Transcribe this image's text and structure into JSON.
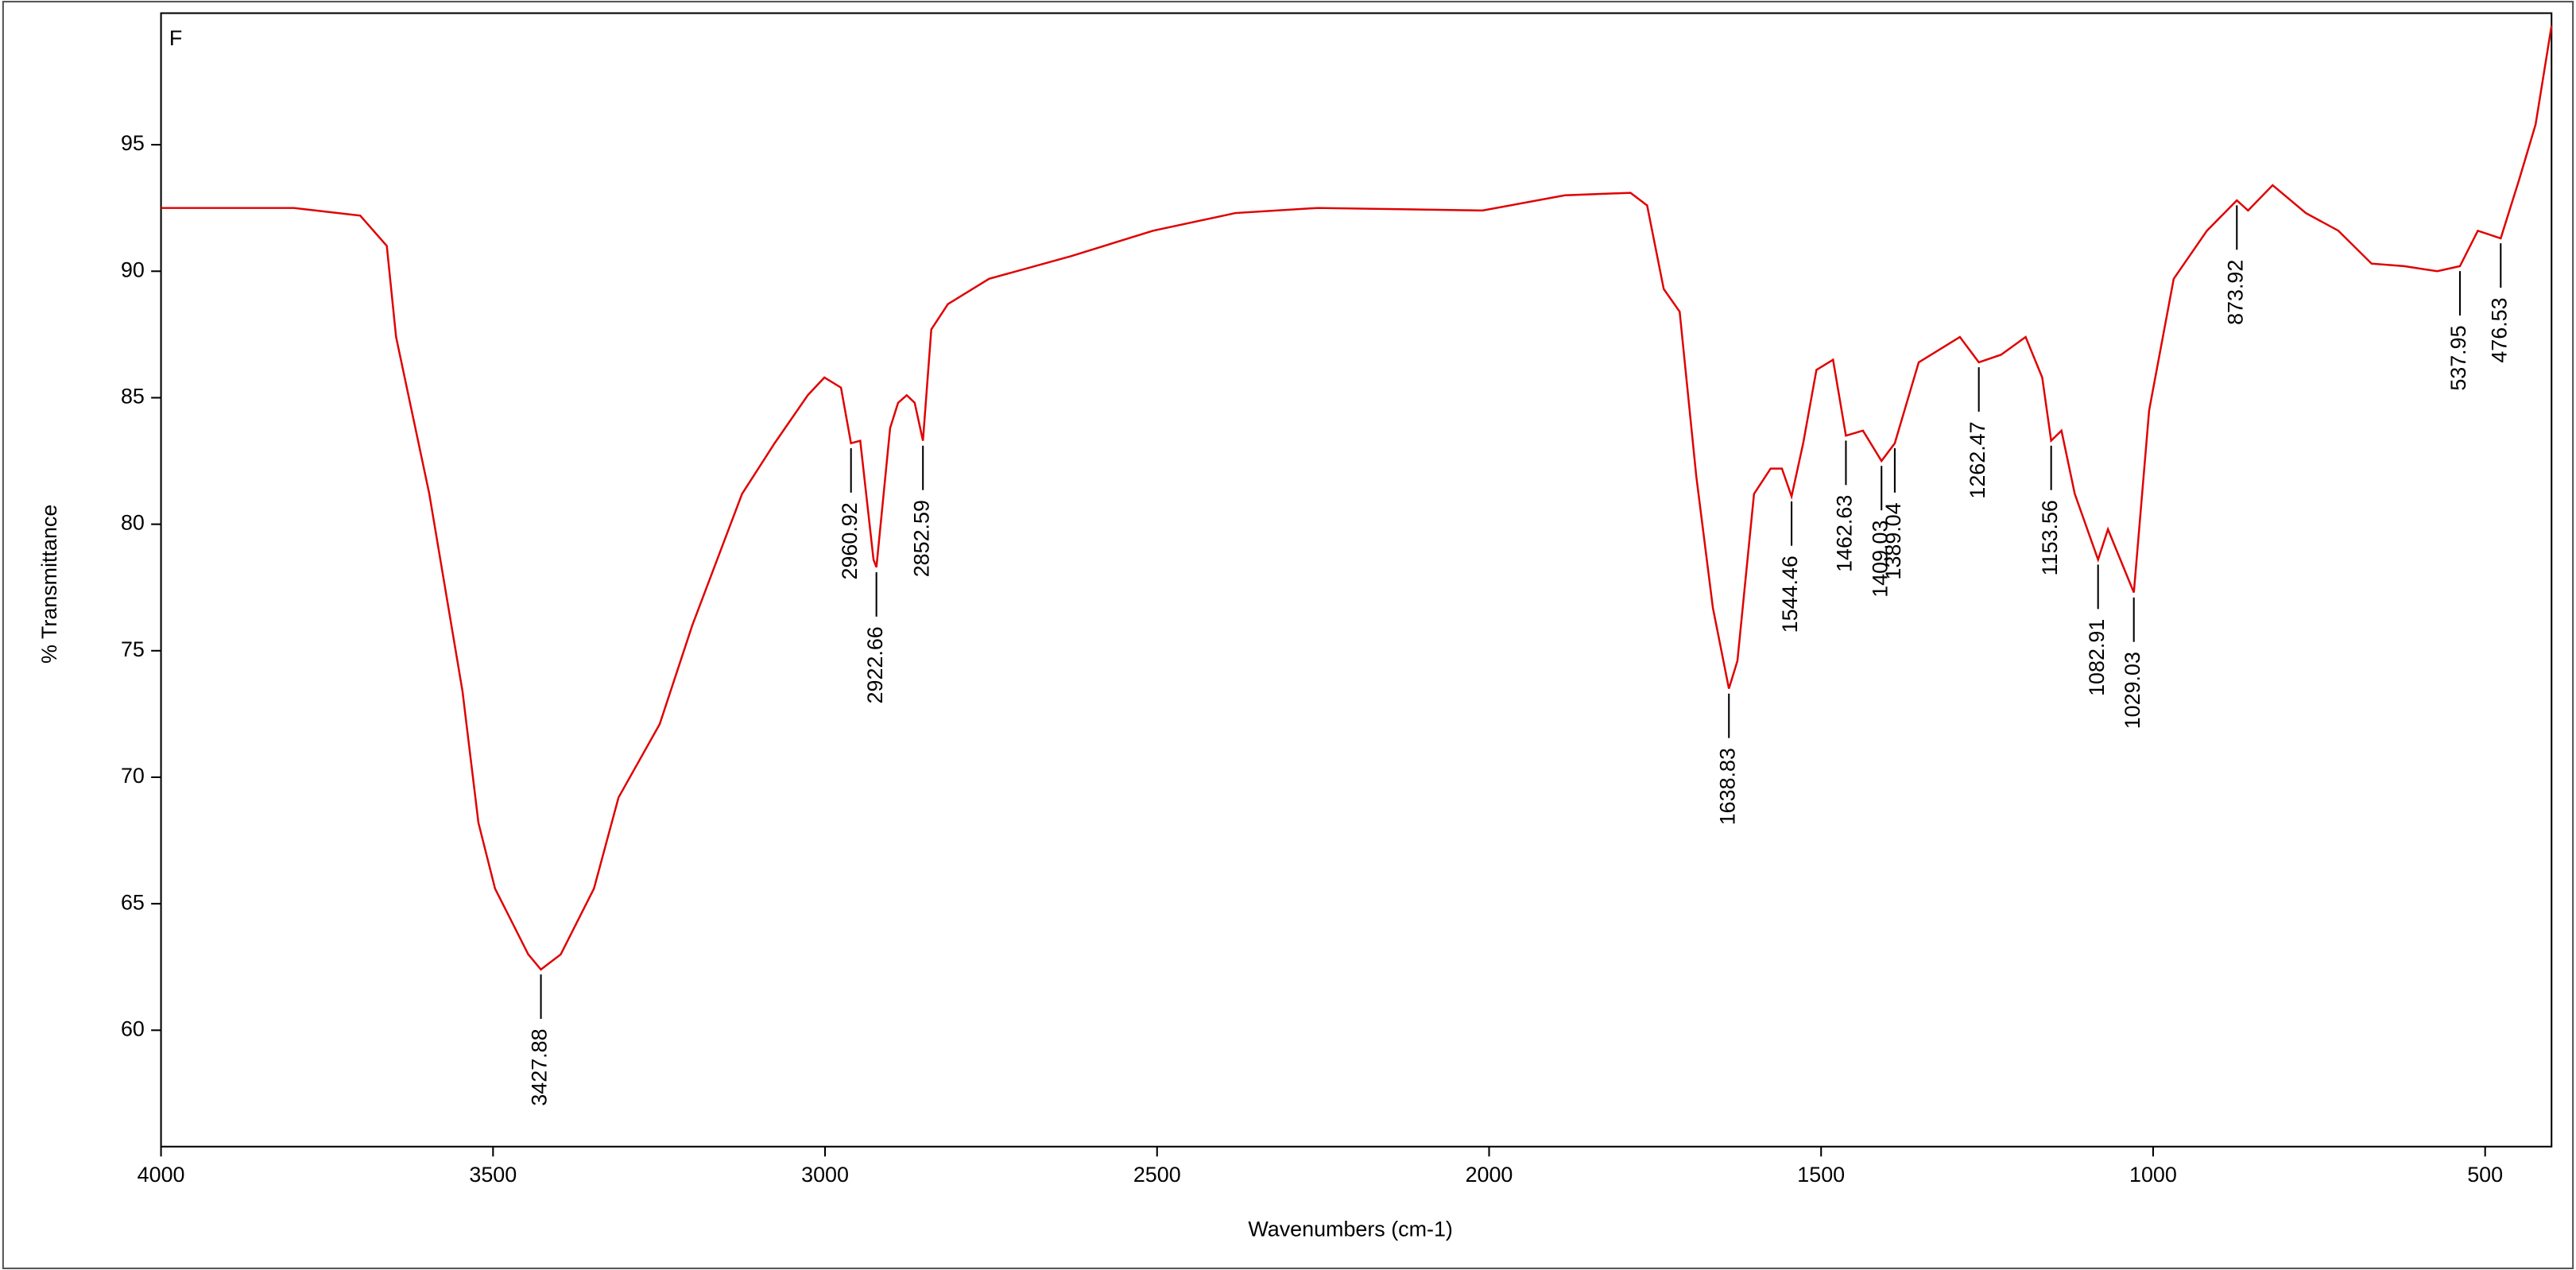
{
  "chart_data": {
    "type": "line",
    "annotation": "F",
    "x_label": "Wavenumbers (cm-1)",
    "y_label": "% Transmittance",
    "xlim": [
      4000,
      400
    ],
    "ylim": [
      55.4,
      100.2
    ],
    "xticks": [
      4000,
      3500,
      3000,
      2500,
      2000,
      1500,
      1000,
      500
    ],
    "yticks": [
      60,
      65,
      70,
      75,
      80,
      85,
      90,
      95
    ],
    "color": "#e00000",
    "grid": false,
    "x": [
      4000,
      3800,
      3700,
      3660,
      3646,
      3596,
      3546,
      3522,
      3497,
      3447,
      3427.88,
      3398,
      3348,
      3311,
      3249,
      3200,
      3125,
      3076,
      3026,
      3001,
      2976,
      2960.92,
      2947,
      2927,
      2922.66,
      2902,
      2890,
      2877,
      2865,
      2852.59,
      2840,
      2815,
      2753,
      2629,
      2506,
      2382,
      2258,
      2010,
      1886,
      1787,
      1762,
      1737,
      1713,
      1688,
      1663,
      1638.83,
      1626,
      1601,
      1576,
      1559,
      1544.46,
      1527,
      1507,
      1482,
      1462.63,
      1437,
      1409.03,
      1389.04,
      1353,
      1291,
      1262.47,
      1229,
      1192,
      1167,
      1153.56,
      1138,
      1118,
      1082.91,
      1068,
      1029.03,
      1006,
      969,
      919,
      873.92,
      857,
      820,
      770,
      721,
      671,
      622,
      572,
      537.95,
      511,
      476.53,
      449,
      424,
      400
    ],
    "values": [
      92.5,
      92.5,
      92.2,
      91.0,
      87.4,
      81.2,
      73.4,
      68.2,
      65.6,
      63.0,
      62.4,
      63.0,
      65.6,
      69.2,
      72.1,
      76.0,
      81.2,
      83.2,
      85.1,
      85.8,
      85.4,
      83.2,
      83.3,
      78.6,
      78.3,
      83.8,
      84.8,
      85.1,
      84.8,
      83.3,
      87.7,
      88.7,
      89.7,
      90.6,
      91.6,
      92.3,
      92.5,
      92.4,
      93.0,
      93.1,
      92.6,
      89.3,
      88.4,
      81.9,
      76.7,
      73.5,
      74.6,
      81.2,
      82.2,
      82.2,
      81.1,
      83.2,
      86.1,
      86.5,
      83.5,
      83.7,
      82.5,
      83.2,
      86.4,
      87.4,
      86.4,
      86.7,
      87.4,
      85.8,
      83.3,
      83.7,
      81.2,
      78.6,
      79.8,
      77.3,
      84.5,
      89.7,
      91.6,
      92.8,
      92.4,
      93.4,
      92.3,
      91.6,
      90.3,
      90.2,
      90.0,
      90.2,
      91.6,
      91.3,
      93.6,
      95.8,
      99.7
    ],
    "peaks": [
      {
        "x": 3427.88,
        "y": 62.4
      },
      {
        "x": 2960.92,
        "y": 83.2
      },
      {
        "x": 2922.66,
        "y": 78.3
      },
      {
        "x": 2852.59,
        "y": 83.3
      },
      {
        "x": 1638.83,
        "y": 73.5
      },
      {
        "x": 1544.46,
        "y": 81.1
      },
      {
        "x": 1462.63,
        "y": 83.5
      },
      {
        "x": 1409.03,
        "y": 82.5
      },
      {
        "x": 1389.04,
        "y": 83.2
      },
      {
        "x": 1262.47,
        "y": 86.4
      },
      {
        "x": 1153.56,
        "y": 83.3
      },
      {
        "x": 1082.91,
        "y": 78.6
      },
      {
        "x": 1029.03,
        "y": 77.3
      },
      {
        "x": 873.92,
        "y": 92.8
      },
      {
        "x": 537.95,
        "y": 90.2
      },
      {
        "x": 476.53,
        "y": 91.3
      }
    ]
  }
}
